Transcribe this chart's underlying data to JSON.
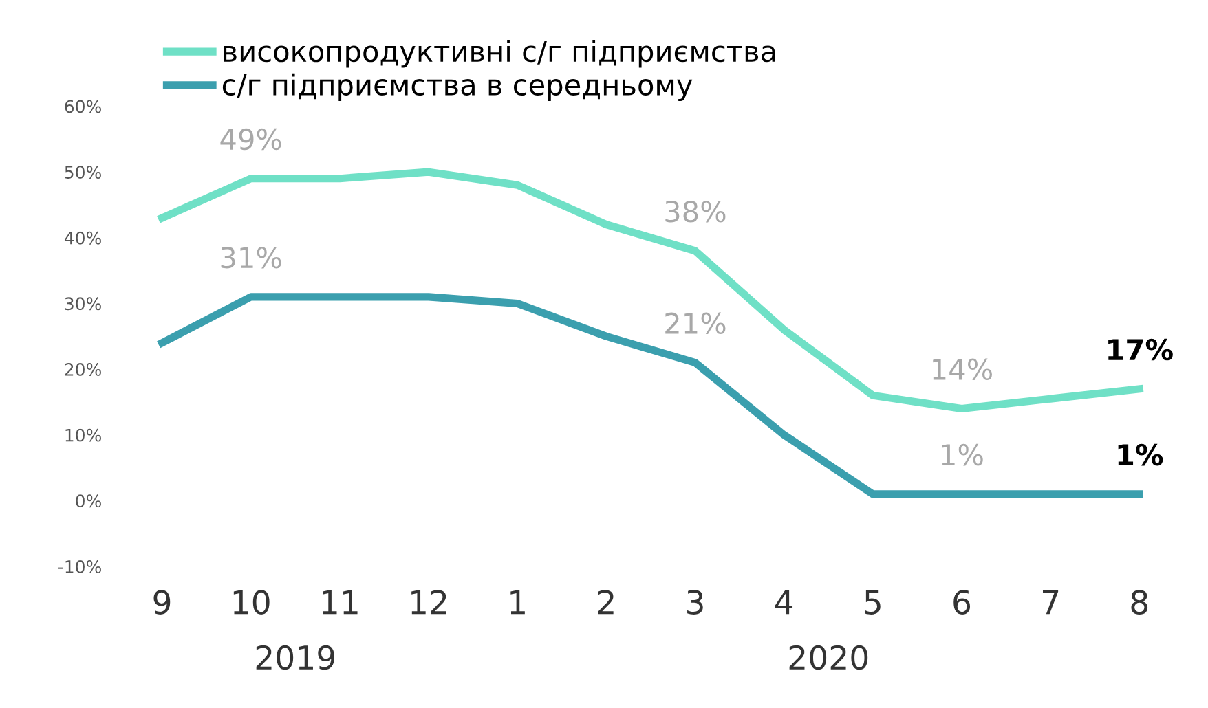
{
  "chart_data": {
    "type": "line",
    "categories": [
      "9",
      "10",
      "11",
      "12",
      "1",
      "2",
      "3",
      "4",
      "5",
      "6",
      "7",
      "8"
    ],
    "series": [
      {
        "name": "високопродуктивні с/г підприємства",
        "color": "#6fe0c6",
        "values": [
          43,
          49,
          49,
          50,
          48,
          42,
          38,
          26,
          16,
          14,
          15.5,
          17
        ],
        "value_labels": [
          null,
          "49%",
          null,
          null,
          null,
          null,
          "38%",
          null,
          null,
          "14%",
          null,
          "17%"
        ]
      },
      {
        "name": "с/г підприємства в середньому",
        "color": "#3b9fae",
        "values": [
          24,
          31,
          31,
          31,
          30,
          25,
          21,
          10,
          1,
          1,
          1,
          1
        ],
        "value_labels": [
          null,
          "31%",
          null,
          null,
          null,
          null,
          "21%",
          null,
          null,
          "1%",
          null,
          "1%"
        ]
      }
    ],
    "ylim": [
      -10,
      60
    ],
    "yticks": [
      {
        "value": -10,
        "label": "-10%"
      },
      {
        "value": 0,
        "label": "0%"
      },
      {
        "value": 10,
        "label": "10%"
      },
      {
        "value": 20,
        "label": "20%"
      },
      {
        "value": 30,
        "label": "30%"
      },
      {
        "value": 40,
        "label": "40%"
      },
      {
        "value": 50,
        "label": "50%"
      },
      {
        "value": 60,
        "label": "60%"
      }
    ],
    "annotations": [
      "2019",
      "2020"
    ],
    "legend": "top left",
    "grid": false,
    "marker": "none",
    "line_style": "solid"
  }
}
